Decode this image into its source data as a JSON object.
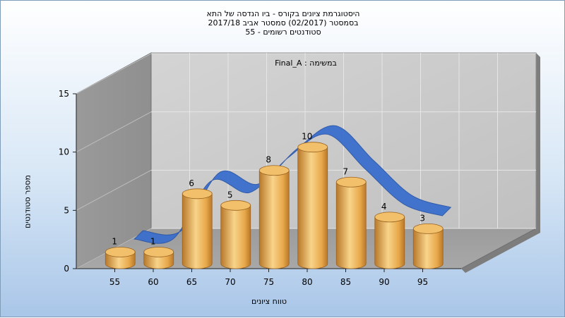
{
  "titles": [
    "היסטוגרמת ציונים בקורס - ביו הנדסה של התא",
    "בסמסטר  (02/2017)  סמסטר אביב 2017/18",
    "סטודנטים רשומים - 55"
  ],
  "chart_data": {
    "type": "bar",
    "categories": [
      "55",
      "60",
      "65",
      "70",
      "75",
      "80",
      "85",
      "90",
      "95"
    ],
    "values": [
      1,
      1,
      6,
      5,
      8,
      10,
      7,
      4,
      3
    ],
    "annotation": "במשימה : Final_A",
    "xlabel": "טווח ציונים",
    "ylabel": "מספר סטודנטים",
    "ylim": [
      0,
      15
    ],
    "yticks": [
      0,
      5,
      10,
      15
    ],
    "grid": true,
    "legend": "none",
    "trend_curve": true
  },
  "colors": {
    "bar_light": "#f8d48a",
    "bar_mid": "#e8a84a",
    "bar_dark": "#b8782a",
    "bar_top": "#f2c06a",
    "trend": "#3a6fcd",
    "trend_dark": "#2a56a8",
    "back_wall": "#c0c0c0",
    "side_wall": "#8f8f8f",
    "floor": "#a8a8a8"
  }
}
